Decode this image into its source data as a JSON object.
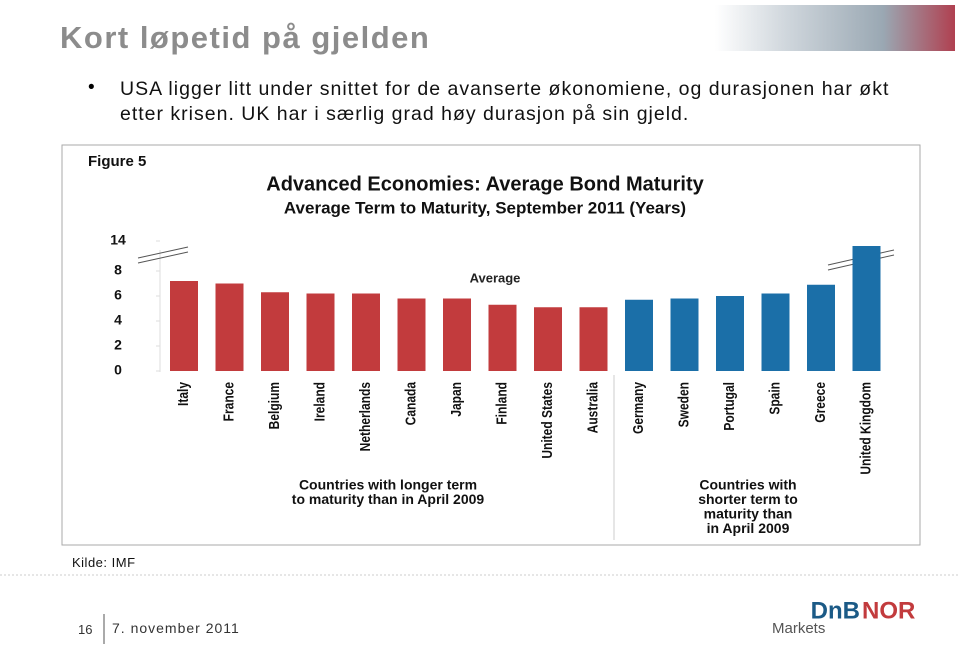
{
  "slide": {
    "title": "Kort løpetid på gjelden",
    "bullet": "USA ligger litt under snittet for de avanserte økonomiene, og durasjonen har økt etter krisen. UK har i særlig grad høy durasjon på sin gjeld.",
    "source": "Kilde: IMF",
    "page": "16",
    "date": "7. november 2011",
    "logo": [
      "DnB",
      "NOR",
      "Markets"
    ]
  },
  "chart_data": {
    "type": "bar",
    "figure": "Figure 5",
    "title": "Advanced Economies: Average Bond Maturity",
    "subtitle": "Average Term to Maturity, September 2011 (Years)",
    "categories": [
      "Italy",
      "France",
      "Belgium",
      "Ireland",
      "Netherlands",
      "Canada",
      "Japan",
      "Finland",
      "United States",
      "Australia",
      "Germany",
      "Sweden",
      "Portugal",
      "Spain",
      "Greece",
      "United Kingdom"
    ],
    "values": [
      7.2,
      7.0,
      6.3,
      6.2,
      6.2,
      5.8,
      5.8,
      5.3,
      5.1,
      5.1,
      5.7,
      5.8,
      6.0,
      6.2,
      6.9,
      13
    ],
    "colors": [
      "#c23b3d",
      "#c23b3d",
      "#c23b3d",
      "#c23b3d",
      "#c23b3d",
      "#c23b3d",
      "#c23b3d",
      "#c23b3d",
      "#c23b3d",
      "#c23b3d",
      "#1b6fa8",
      "#1b6fa8",
      "#1b6fa8",
      "#1b6fa8",
      "#1b6fa8",
      "#1b6fa8"
    ],
    "ylim": [
      0,
      14
    ],
    "yticks": [
      0,
      2,
      4,
      6,
      8,
      14
    ],
    "annotation": "Average",
    "group_labels": [
      [
        "Countries with longer term",
        "to maturity than in April 2009"
      ],
      [
        "Countries with",
        "shorter term to",
        "maturity than",
        "in April 2009"
      ]
    ]
  }
}
